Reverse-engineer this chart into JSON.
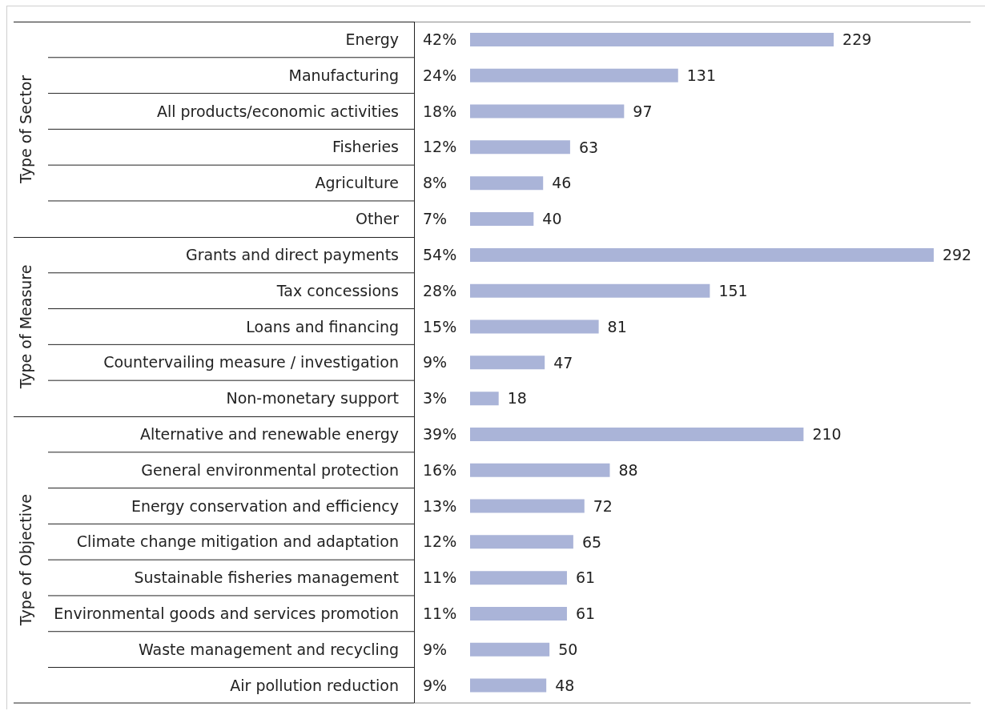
{
  "chart_data": [
    {
      "type": "bar",
      "orientation": "horizontal",
      "ylabel": "Type of Sector",
      "categories": [
        "Energy",
        "Manufacturing",
        "All products/economic activities",
        "Fisheries",
        "Agriculture",
        "Other"
      ],
      "values": [
        229,
        131,
        97,
        63,
        46,
        40
      ],
      "color": "#aab4d8",
      "data_labels": true,
      "annotations": [
        "42%",
        "24%",
        "18%",
        "12%",
        "8%",
        "7%"
      ]
    },
    {
      "type": "bar",
      "orientation": "horizontal",
      "ylabel": "Type of Measure",
      "categories": [
        "Grants and direct payments",
        "Tax concessions",
        "Loans and financing",
        "Countervailing measure / investigation",
        "Non-monetary support"
      ],
      "values": [
        292,
        151,
        81,
        47,
        18
      ],
      "color": "#aab4d8",
      "data_labels": true,
      "annotations": [
        "54%",
        "28%",
        "15%",
        "9%",
        "3%"
      ]
    },
    {
      "type": "bar",
      "orientation": "horizontal",
      "ylabel": "Type of Objective",
      "categories": [
        "Alternative and renewable energy",
        "General environmental protection",
        "Energy conservation and efficiency",
        "Climate change mitigation and adaptation",
        "Sustainable fisheries management",
        "Environmental goods and services promotion",
        "Waste management and recycling",
        "Air pollution reduction"
      ],
      "values": [
        210,
        88,
        72,
        65,
        61,
        61,
        50,
        48
      ],
      "color": "#aab4d8",
      "data_labels": true,
      "annotations": [
        "39%",
        "16%",
        "13%",
        "12%",
        "11%",
        "11%",
        "9%",
        "9%"
      ]
    }
  ]
}
